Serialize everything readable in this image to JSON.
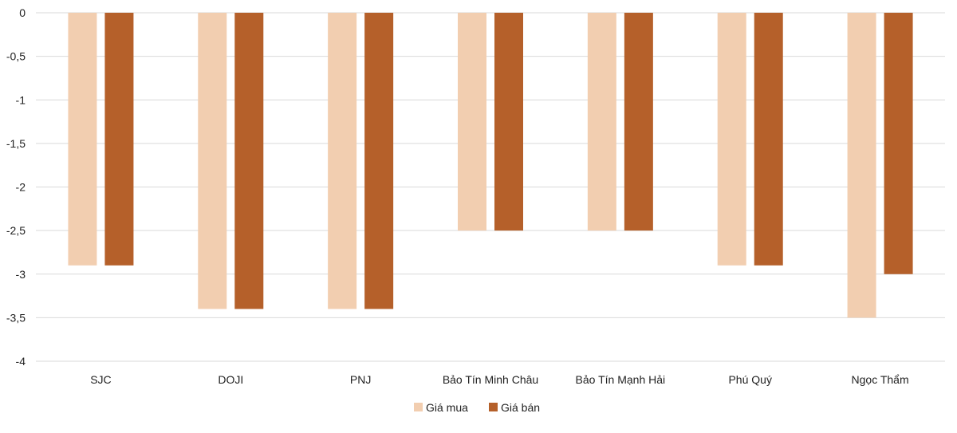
{
  "chart_data": {
    "type": "bar",
    "title": "",
    "xlabel": "",
    "ylabel": "",
    "ylim": [
      -4,
      0
    ],
    "yticks": [
      0,
      -0.5,
      -1,
      -1.5,
      -2,
      -2.5,
      -3,
      -3.5,
      -4
    ],
    "ytick_labels": [
      "0",
      "-0,5",
      "-1",
      "-1,5",
      "-2",
      "-2,5",
      "-3",
      "-3,5",
      "-4"
    ],
    "grid": true,
    "legend_position": "bottom",
    "categories": [
      "SJC",
      "DOJI",
      "PNJ",
      "Bảo Tín Minh Châu",
      "Bảo Tín Mạnh Hải",
      "Phú Quý",
      "Ngọc Thẩm"
    ],
    "series": [
      {
        "name": "Giá mua",
        "color": "#F2CEB0",
        "values": [
          -2.9,
          -3.4,
          -3.4,
          -2.5,
          -2.5,
          -2.9,
          -3.5
        ]
      },
      {
        "name": "Giá bán",
        "color": "#B5602A",
        "values": [
          -2.9,
          -3.4,
          -3.4,
          -2.5,
          -2.5,
          -2.9,
          -3.0
        ]
      }
    ]
  }
}
